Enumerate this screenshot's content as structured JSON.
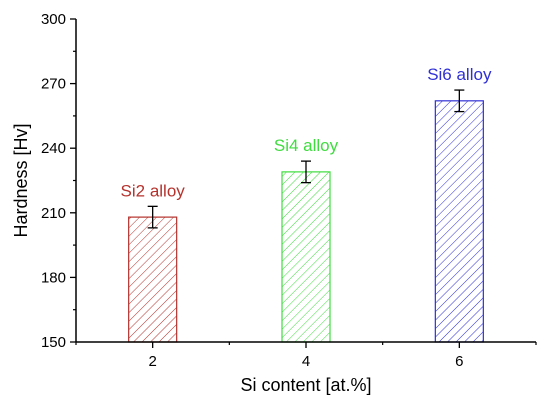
{
  "chart_data": {
    "type": "bar",
    "title": "",
    "xlabel": "Si content [at.%]",
    "ylabel": "Hardness [Hv]",
    "categories": [
      "2",
      "4",
      "6"
    ],
    "x": [
      2,
      4,
      6
    ],
    "xlim": [
      1,
      7
    ],
    "ylim": [
      150,
      300
    ],
    "yticks": [
      150,
      180,
      210,
      240,
      270,
      300
    ],
    "values": [
      208,
      229,
      262
    ],
    "errors": [
      5,
      5,
      5
    ],
    "bar_labels": [
      "Si2 alloy",
      "Si4 alloy",
      "Si6 alloy"
    ],
    "colors": [
      "#b5322d",
      "#3fdc3f",
      "#2f2fd6"
    ],
    "pattern": "diagonal-hatch",
    "grid": false,
    "legend": "none"
  }
}
